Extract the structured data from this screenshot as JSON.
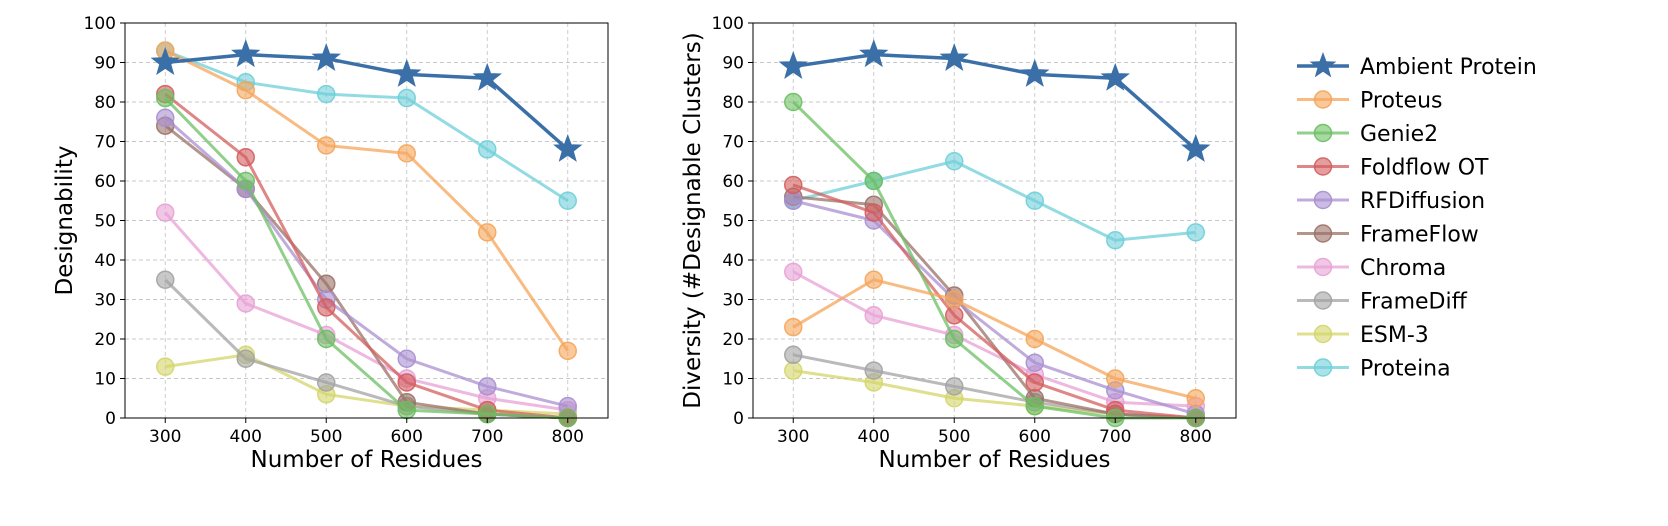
{
  "chart_data": [
    {
      "type": "line",
      "xlabel": "Number of Residues",
      "ylabel": "Designability",
      "x": [
        300,
        400,
        500,
        600,
        700,
        800
      ],
      "xlim": [
        250,
        850
      ],
      "ylim": [
        0,
        100
      ],
      "yticks": [
        0,
        10,
        20,
        30,
        40,
        50,
        60,
        70,
        80,
        90,
        100
      ],
      "grid": true,
      "series": [
        {
          "name": "Ambient Protein",
          "values": [
            90,
            92,
            91,
            87,
            86,
            68
          ]
        },
        {
          "name": "Proteus",
          "values": [
            93,
            83,
            69,
            67,
            47,
            17
          ]
        },
        {
          "name": "Genie2",
          "values": [
            81,
            60,
            20,
            2,
            1,
            0
          ]
        },
        {
          "name": "Foldflow OT",
          "values": [
            82,
            66,
            28,
            9,
            2,
            0
          ]
        },
        {
          "name": "RFDiffusion",
          "values": [
            76,
            58,
            30,
            15,
            8,
            3
          ]
        },
        {
          "name": "FrameFlow",
          "values": [
            74,
            58,
            34,
            4,
            1,
            0
          ]
        },
        {
          "name": "Chroma",
          "values": [
            52,
            29,
            21,
            10,
            5,
            2
          ]
        },
        {
          "name": "FrameDiff",
          "values": [
            35,
            15,
            9,
            3,
            1,
            0
          ]
        },
        {
          "name": "ESM-3",
          "values": [
            13,
            16,
            6,
            3,
            2,
            1
          ]
        },
        {
          "name": "Proteina",
          "values": [
            93,
            85,
            82,
            81,
            68,
            55
          ]
        }
      ]
    },
    {
      "type": "line",
      "xlabel": "Number of Residues",
      "ylabel": "Diversity (#Designable Clusters)",
      "x": [
        300,
        400,
        500,
        600,
        700,
        800
      ],
      "xlim": [
        250,
        850
      ],
      "ylim": [
        0,
        100
      ],
      "yticks": [
        0,
        10,
        20,
        30,
        40,
        50,
        60,
        70,
        80,
        90,
        100
      ],
      "grid": true,
      "series": [
        {
          "name": "Ambient Protein",
          "values": [
            89,
            92,
            91,
            87,
            86,
            68
          ]
        },
        {
          "name": "Proteus",
          "values": [
            23,
            35,
            30,
            20,
            10,
            5
          ]
        },
        {
          "name": "Genie2",
          "values": [
            80,
            60,
            20,
            3,
            0,
            0
          ]
        },
        {
          "name": "Foldflow OT",
          "values": [
            59,
            52,
            26,
            9,
            2,
            0
          ]
        },
        {
          "name": "RFDiffusion",
          "values": [
            55,
            50,
            30,
            14,
            7,
            1
          ]
        },
        {
          "name": "FrameFlow",
          "values": [
            56,
            54,
            31,
            5,
            1,
            0
          ]
        },
        {
          "name": "Chroma",
          "values": [
            37,
            26,
            21,
            11,
            4,
            3
          ]
        },
        {
          "name": "FrameDiff",
          "values": [
            16,
            12,
            8,
            4,
            1,
            0
          ]
        },
        {
          "name": "ESM-3",
          "values": [
            12,
            9,
            5,
            3,
            1,
            0
          ]
        },
        {
          "name": "Proteina",
          "values": [
            55,
            60,
            65,
            55,
            45,
            47
          ]
        }
      ]
    }
  ],
  "legend": {
    "placement": "right",
    "items": [
      "Ambient Protein",
      "Proteus",
      "Genie2",
      "Foldflow OT",
      "RFDiffusion",
      "FrameFlow",
      "Chroma",
      "FrameDiff",
      "ESM-3",
      "Proteina"
    ]
  },
  "colors": {
    "Ambient Protein": "#3a6fa8",
    "Proteus": "#f5a55a",
    "Genie2": "#6cbf63",
    "Foldflow OT": "#d45d5e",
    "RFDiffusion": "#a98fd0",
    "FrameFlow": "#9b7268",
    "Chroma": "#e8a2d6",
    "FrameDiff": "#a3a3a3",
    "ESM-3": "#d4d66a",
    "Proteina": "#6fcfd9"
  },
  "markers": {
    "Ambient Protein": "star",
    "default": "circle"
  }
}
